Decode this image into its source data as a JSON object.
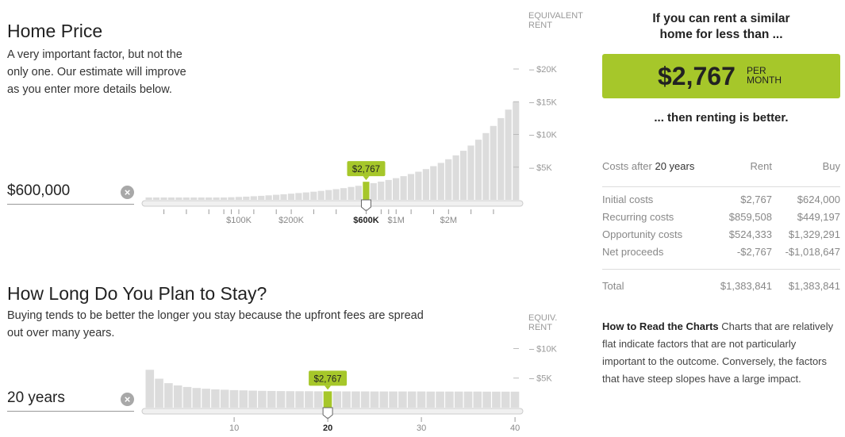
{
  "home_price": {
    "title": "Home Price",
    "description_lines": [
      "A very important factor, but not the",
      "only one. Our estimate will improve",
      "as you enter more details below."
    ],
    "value": "$600,000",
    "clear_icon": "close-icon"
  },
  "stay": {
    "title": "How Long Do You Plan to Stay?",
    "description_lines": [
      "Buying tends to be better the longer you stay because the upfront fees are spread",
      "out over many years."
    ],
    "value": "20 years",
    "clear_icon": "close-icon"
  },
  "chart_data": [
    {
      "type": "bar",
      "name": "home-price-chart",
      "equiv_label": [
        "EQUIVALENT",
        "RENT"
      ],
      "y_ticks": [
        "$20K",
        "$15K",
        "$10K",
        "$5K"
      ],
      "y_tick_values": [
        20000,
        15000,
        10000,
        5000
      ],
      "x_tick_labels": [
        "$100K",
        "$200K",
        "$600K",
        "$1M",
        "$2M"
      ],
      "selected_label": "$2,767",
      "selected_index": 29,
      "values": [
        50,
        70,
        90,
        110,
        140,
        170,
        200,
        230,
        270,
        310,
        350,
        400,
        450,
        500,
        560,
        620,
        690,
        770,
        850,
        940,
        1040,
        1140,
        1250,
        1370,
        1500,
        1640,
        1800,
        1970,
        2150,
        2767,
        2560,
        2790,
        3040,
        3320,
        3620,
        3950,
        4300,
        4700,
        5150,
        5650,
        6200,
        6800,
        7500,
        8300,
        9200,
        10200,
        11300,
        12500,
        13800,
        15000
      ]
    },
    {
      "type": "bar",
      "name": "stay-chart",
      "equiv_label": [
        "EQUIV.",
        "RENT"
      ],
      "y_ticks": [
        "$10K",
        "$5K"
      ],
      "y_tick_values": [
        10000,
        5000
      ],
      "x_tick_labels": [
        "10",
        "20",
        "30",
        "40"
      ],
      "x_tick_values": [
        10,
        20,
        30,
        40
      ],
      "selected_label": "$2,767",
      "selected_index": 19,
      "values": [
        6400,
        4900,
        4150,
        3750,
        3500,
        3330,
        3200,
        3100,
        3030,
        2970,
        2920,
        2880,
        2850,
        2830,
        2810,
        2790,
        2780,
        2775,
        2770,
        2767,
        2760,
        2755,
        2750,
        2745,
        2742,
        2740,
        2737,
        2735,
        2733,
        2730,
        2728,
        2726,
        2724,
        2722,
        2720,
        2718,
        2716,
        2714,
        2712,
        2710
      ]
    }
  ],
  "summary": {
    "if_rent_lines": [
      "If you can rent a similar",
      "home for less than ..."
    ],
    "amount": "$2,767",
    "per_lines": [
      "PER",
      "MONTH"
    ],
    "then_text": "... then renting is better.",
    "accent_color": "#a6c72a"
  },
  "costs": {
    "header_prefix": "Costs after",
    "header_years": "20 years",
    "col_rent": "Rent",
    "col_buy": "Buy",
    "rows": [
      {
        "label": "Initial costs",
        "rent": "$2,767",
        "buy": "$624,000"
      },
      {
        "label": "Recurring costs",
        "rent": "$859,508",
        "buy": "$449,197"
      },
      {
        "label": "Opportunity costs",
        "rent": "$524,333",
        "buy": "$1,329,291"
      },
      {
        "label": "Net proceeds",
        "rent": "-$2,767",
        "buy": "-$1,018,647"
      }
    ],
    "total": {
      "label": "Total",
      "rent": "$1,383,841",
      "buy": "$1,383,841"
    }
  },
  "howto": {
    "title": "How to Read the Charts",
    "text": " Charts that are relatively flat indicate factors that are not particularly important to the outcome. Conversely, the factors that have steep slopes have a large impact."
  }
}
